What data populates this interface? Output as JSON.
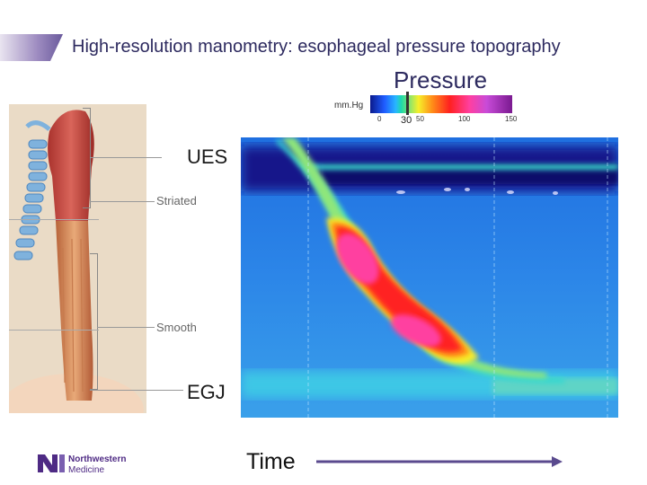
{
  "header": {
    "title": "High-resolution manometry: esophageal pressure topography",
    "accent_color": "#6a5a9c"
  },
  "colorbar": {
    "heading": "Pressure",
    "unit": "mm.Hg",
    "ticks": [
      "0",
      "50",
      "100",
      "150"
    ],
    "marker_value": "30"
  },
  "anatomy": {
    "labels": {
      "striated": "Striated",
      "smooth": "Smooth"
    }
  },
  "topography": {
    "ues_label": "UES",
    "egj_label": "EGJ",
    "time_label": "Time"
  },
  "logo": {
    "line1": "Northwestern",
    "line2": "Medicine"
  }
}
